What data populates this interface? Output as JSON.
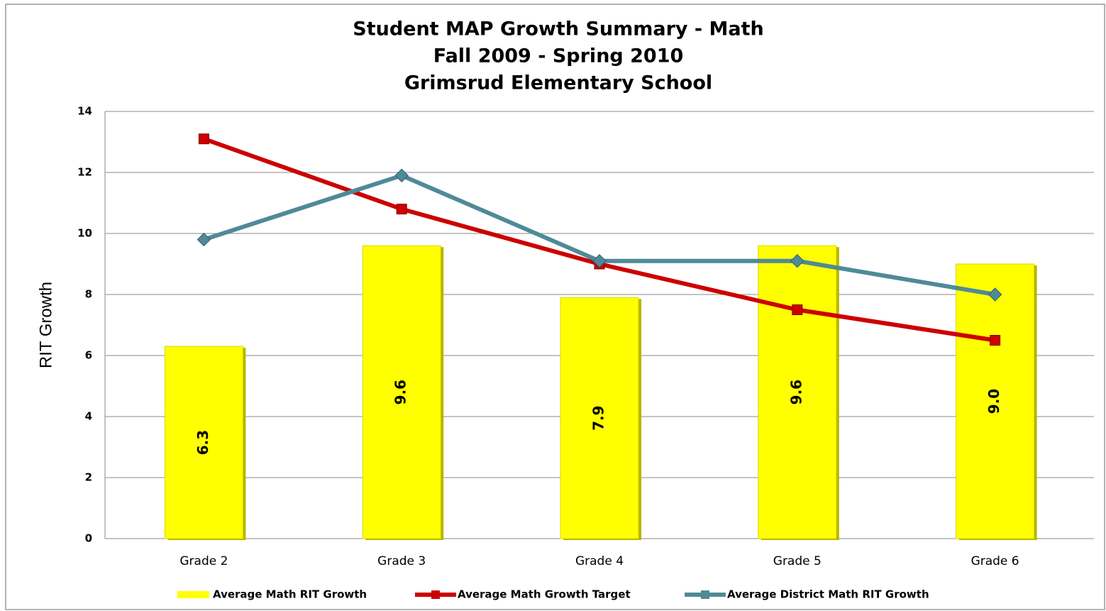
{
  "chart_data": {
    "type": "bar",
    "title": [
      "Student MAP Growth Summary - Math",
      "Fall 2009 - Spring 2010",
      "Grimsrud Elementary School"
    ],
    "y_label": "RIT Growth",
    "categories": [
      "Grade 2",
      "Grade 3",
      "Grade 4",
      "Grade 5",
      "Grade 6"
    ],
    "series": [
      {
        "name": "Average Math RIT Growth",
        "type": "bar",
        "color": "#ffff00",
        "values": [
          6.3,
          9.6,
          7.9,
          9.6,
          9.0
        ],
        "value_labels": [
          "6.3",
          "9.6",
          "7.9",
          "9.6",
          "9.0"
        ]
      },
      {
        "name": "Average Math Growth Target",
        "type": "line",
        "color": "#cc0000",
        "values": [
          13.1,
          10.8,
          9.0,
          7.5,
          6.5
        ]
      },
      {
        "name": "Average District Math RIT Growth",
        "type": "line",
        "color": "#4f8a98",
        "values": [
          9.8,
          11.9,
          9.1,
          9.1,
          8.0
        ]
      }
    ],
    "ylim": [
      0,
      14
    ],
    "yticks": [
      0,
      2,
      4,
      6,
      8,
      10,
      12,
      14
    ],
    "grid": true,
    "legend": "bottom"
  }
}
